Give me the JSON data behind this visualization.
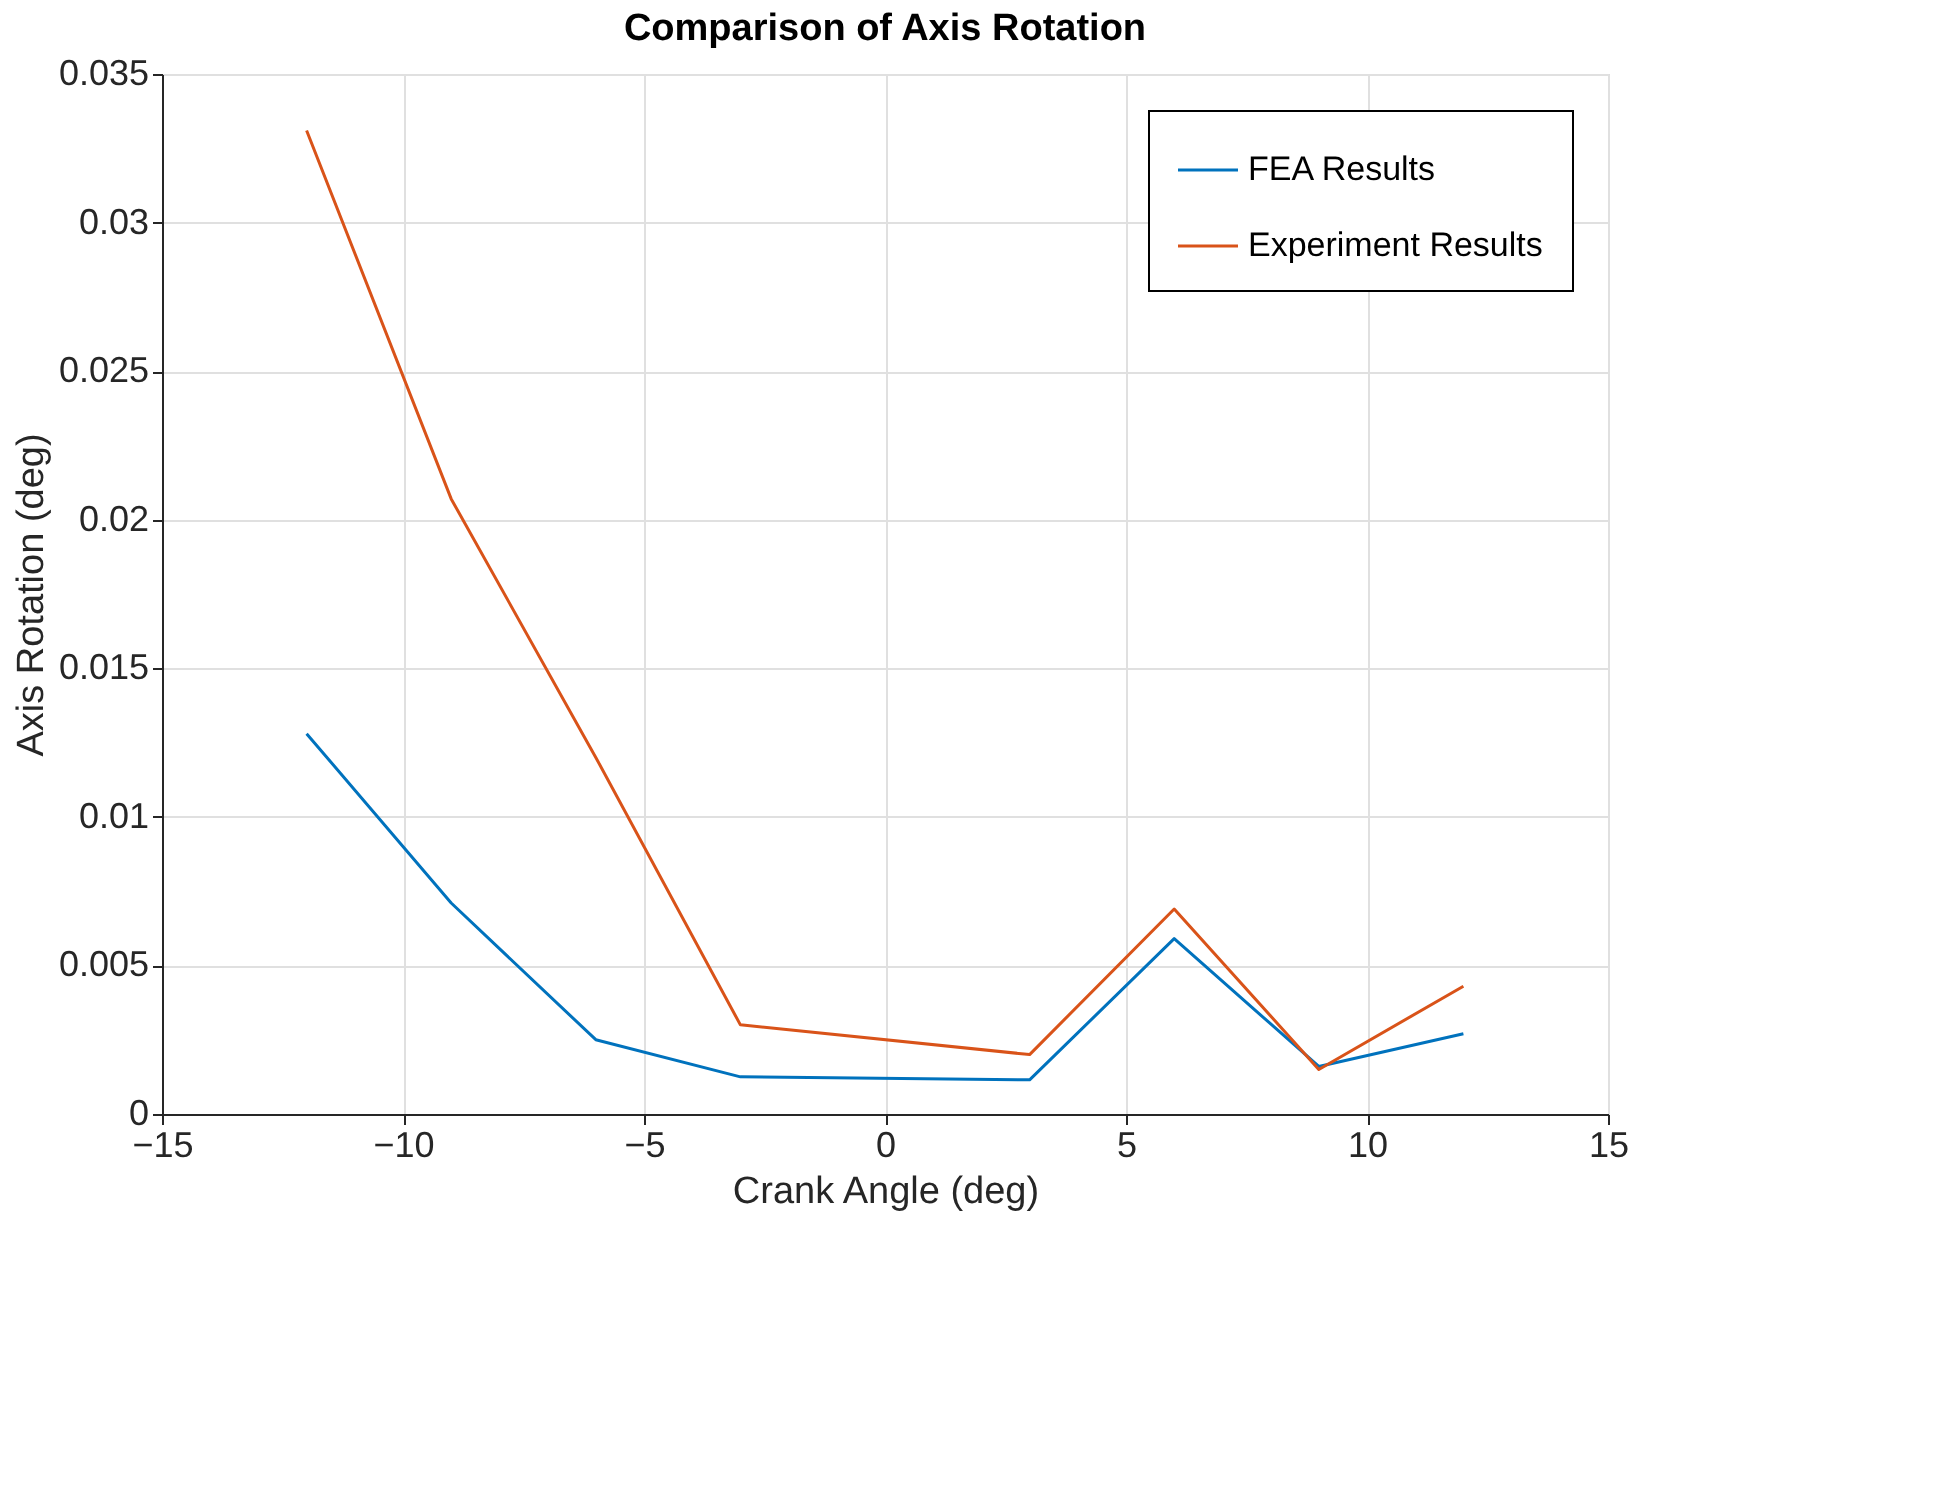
{
  "chart_data": {
    "type": "line",
    "title": "Comparison of Axis Rotation",
    "xlabel": "Crank Angle (deg)",
    "ylabel": "Axis Rotation (deg)",
    "x": [
      -12,
      -9,
      -6,
      -3,
      3,
      6,
      9,
      12
    ],
    "series": [
      {
        "name": "FEA Results",
        "color": "#0072bd",
        "values": [
          0.0128,
          0.0071,
          0.0025,
          0.00125,
          0.00115,
          0.0059,
          0.0016,
          0.0027
        ]
      },
      {
        "name": "Experiment Results",
        "color": "#d95319",
        "values": [
          0.0331,
          0.0207,
          0.012,
          0.003,
          0.002,
          0.0069,
          0.0015,
          0.0043
        ]
      }
    ],
    "xlim": [
      -15,
      15
    ],
    "xticks": [
      -15,
      -10,
      -5,
      0,
      5,
      10,
      15
    ],
    "ylim": [
      0,
      0.035
    ],
    "yticks": [
      0,
      0.005,
      0.01,
      0.015,
      0.02,
      0.025,
      0.03,
      0.035
    ],
    "grid": true,
    "legend": "top right",
    "marker": "none",
    "line_style": "solid"
  }
}
